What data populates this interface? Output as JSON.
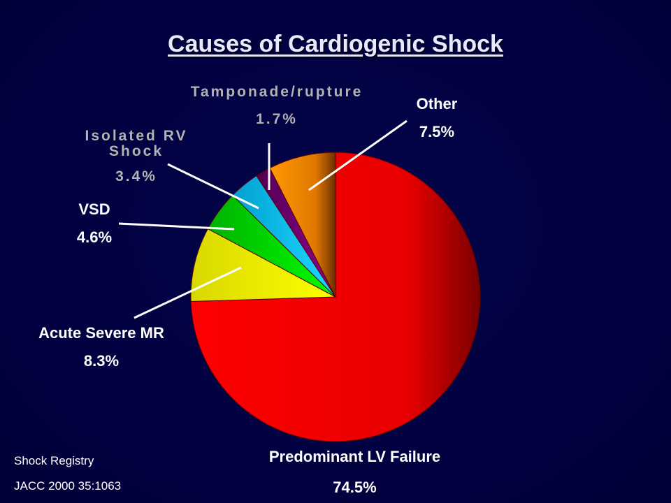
{
  "slide": {
    "title": "Causes of Cardiogenic Shock",
    "source_line1": "Shock Registry",
    "source_line2": "JACC 2000 35:1063"
  },
  "chart_data": {
    "type": "pie",
    "title": "Causes of Cardiogenic Shock",
    "slices": [
      {
        "label": "Predominant LV Failure",
        "value": 74.5,
        "value_label": "74.5%",
        "color": "#ff0000"
      },
      {
        "label": "Acute Severe MR",
        "value": 8.3,
        "value_label": "8.3%",
        "color": "#ffff00"
      },
      {
        "label": "VSD",
        "value": 4.6,
        "value_label": "4.6%",
        "color": "#00e000"
      },
      {
        "label": "Isolated RV Shock",
        "value": 3.4,
        "value_label": "3.4%",
        "color": "#10c8f0"
      },
      {
        "label": "Tamponade/rupture",
        "value": 1.7,
        "value_label": "1.7%",
        "color": "#7a007a"
      },
      {
        "label": "Other",
        "value": 7.5,
        "value_label": "7.5%",
        "color": "#ff9900"
      }
    ]
  }
}
